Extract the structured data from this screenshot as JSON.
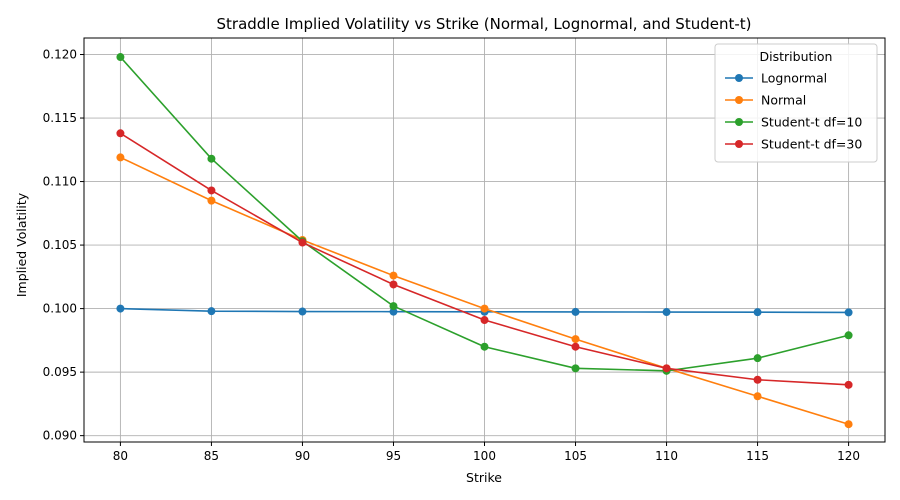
{
  "chart_data": {
    "type": "line",
    "title": "Straddle Implied Volatility vs Strike (Normal, Lognormal, and Student-t)",
    "xlabel": "Strike",
    "ylabel": "Implied Volatility",
    "x": [
      80,
      85,
      90,
      95,
      100,
      105,
      110,
      115,
      120
    ],
    "xlim": [
      78,
      122
    ],
    "ylim": [
      0.0895,
      0.1213
    ],
    "xticks": [
      80,
      85,
      90,
      95,
      100,
      105,
      110,
      115,
      120
    ],
    "yticks": [
      0.09,
      0.095,
      0.1,
      0.105,
      0.11,
      0.115,
      0.12
    ],
    "ytick_labels": [
      "0.090",
      "0.095",
      "0.100",
      "0.105",
      "0.110",
      "0.115",
      "0.120"
    ],
    "grid": true,
    "legend": {
      "title": "Distribution",
      "placement": "top-right"
    },
    "series": [
      {
        "name": "Lognormal",
        "color": "#1f77b4",
        "values": [
          0.1,
          0.0998,
          0.09977,
          0.09976,
          0.09975,
          0.09974,
          0.09973,
          0.09972,
          0.0997
        ]
      },
      {
        "name": "Normal",
        "color": "#ff7f0e",
        "values": [
          0.1119,
          0.1085,
          0.1054,
          0.1026,
          0.1,
          0.0976,
          0.0953,
          0.0931,
          0.0909
        ]
      },
      {
        "name": "Student-t df=10",
        "color": "#2ca02c",
        "values": [
          0.1198,
          0.1118,
          0.1053,
          0.1002,
          0.097,
          0.0953,
          0.0951,
          0.0961,
          0.0979
        ]
      },
      {
        "name": "Student-t df=30",
        "color": "#d62728",
        "values": [
          0.1138,
          0.1093,
          0.1052,
          0.1019,
          0.0991,
          0.097,
          0.0953,
          0.0944,
          0.094
        ]
      }
    ]
  }
}
